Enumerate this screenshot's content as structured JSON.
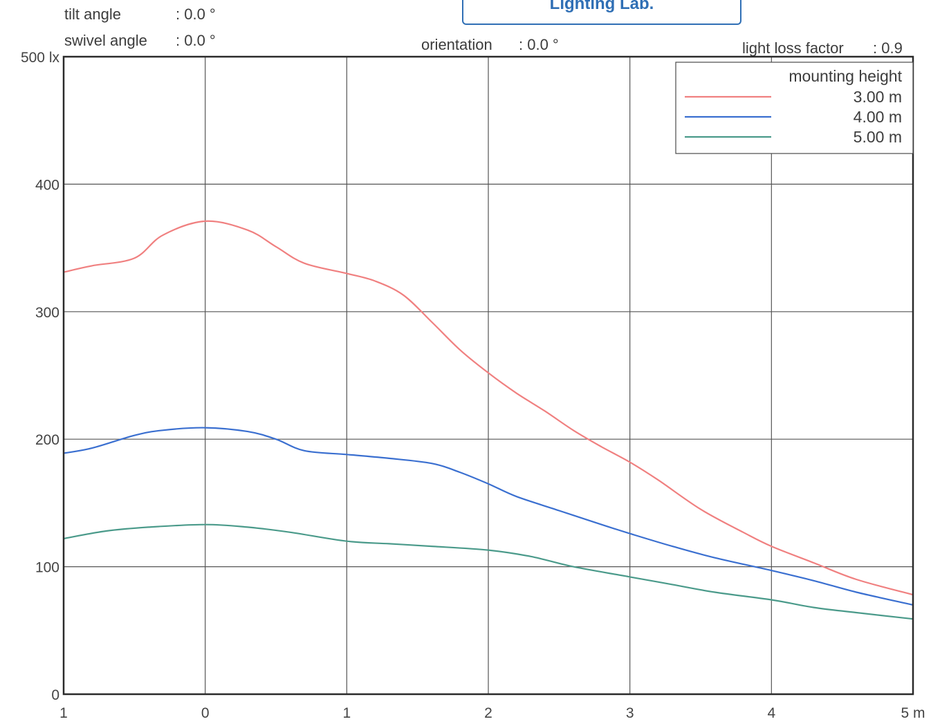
{
  "header": {
    "tilt_label": "tilt angle",
    "tilt_value": ": 0.0 °",
    "swivel_label": "swivel angle",
    "swivel_value": ": 0.0 °",
    "orientation_label": "orientation",
    "orientation_value": ": 0.0 °",
    "llf_label": "light loss factor",
    "llf_value": ": 0.9",
    "logo_text": "Lighting Lab."
  },
  "chart_data": {
    "type": "line",
    "title": "",
    "xlabel": "",
    "ylabel": "",
    "xlim": [
      -1,
      5
    ],
    "ylim": [
      0,
      500
    ],
    "x_ticks": [
      {
        "value": -1,
        "label": "1"
      },
      {
        "value": 0,
        "label": "0"
      },
      {
        "value": 1,
        "label": "1"
      },
      {
        "value": 2,
        "label": "2"
      },
      {
        "value": 3,
        "label": "3"
      },
      {
        "value": 4,
        "label": "4"
      },
      {
        "value": 5,
        "label": "5 m"
      }
    ],
    "y_ticks": [
      {
        "value": 0,
        "label": "0"
      },
      {
        "value": 100,
        "label": "100"
      },
      {
        "value": 200,
        "label": "200"
      },
      {
        "value": 300,
        "label": "300"
      },
      {
        "value": 400,
        "label": "400"
      },
      {
        "value": 500,
        "label": "500 lx"
      }
    ],
    "grid": true,
    "legend": {
      "title": "mounting height",
      "placement": "top-right"
    },
    "series": [
      {
        "name": "3.00 m",
        "color": "#f08080",
        "x": [
          -1,
          -0.8,
          -0.5,
          -0.3,
          0,
          0.3,
          0.5,
          0.7,
          1,
          1.2,
          1.4,
          1.6,
          1.8,
          2,
          2.2,
          2.4,
          2.6,
          2.8,
          3,
          3.2,
          3.5,
          3.8,
          4,
          4.3,
          4.6,
          5
        ],
        "y": [
          331,
          336,
          342,
          360,
          371,
          364,
          351,
          338,
          330,
          324,
          313,
          292,
          270,
          252,
          236,
          222,
          207,
          194,
          182,
          168,
          145,
          127,
          116,
          103,
          90,
          78
        ]
      },
      {
        "name": "4.00 m",
        "color": "#3a6fd0",
        "x": [
          -1,
          -0.8,
          -0.5,
          -0.3,
          0,
          0.3,
          0.5,
          0.7,
          1,
          1.3,
          1.6,
          1.8,
          2,
          2.2,
          2.5,
          2.8,
          3,
          3.3,
          3.6,
          4,
          4.3,
          4.6,
          5
        ],
        "y": [
          189,
          193,
          203,
          207,
          209,
          206,
          200,
          191,
          188,
          185,
          181,
          174,
          165,
          155,
          144,
          133,
          126,
          116,
          107,
          97,
          89,
          80,
          70
        ]
      },
      {
        "name": "5.00 m",
        "color": "#4a9a8a",
        "x": [
          -1,
          -0.7,
          -0.4,
          0,
          0.3,
          0.6,
          1,
          1.3,
          1.6,
          2,
          2.3,
          2.6,
          3,
          3.3,
          3.6,
          4,
          4.3,
          4.6,
          5
        ],
        "y": [
          122,
          128,
          131,
          133,
          131,
          127,
          120,
          118,
          116,
          113,
          108,
          100,
          92,
          86,
          80,
          74,
          68,
          64,
          59
        ]
      }
    ]
  }
}
